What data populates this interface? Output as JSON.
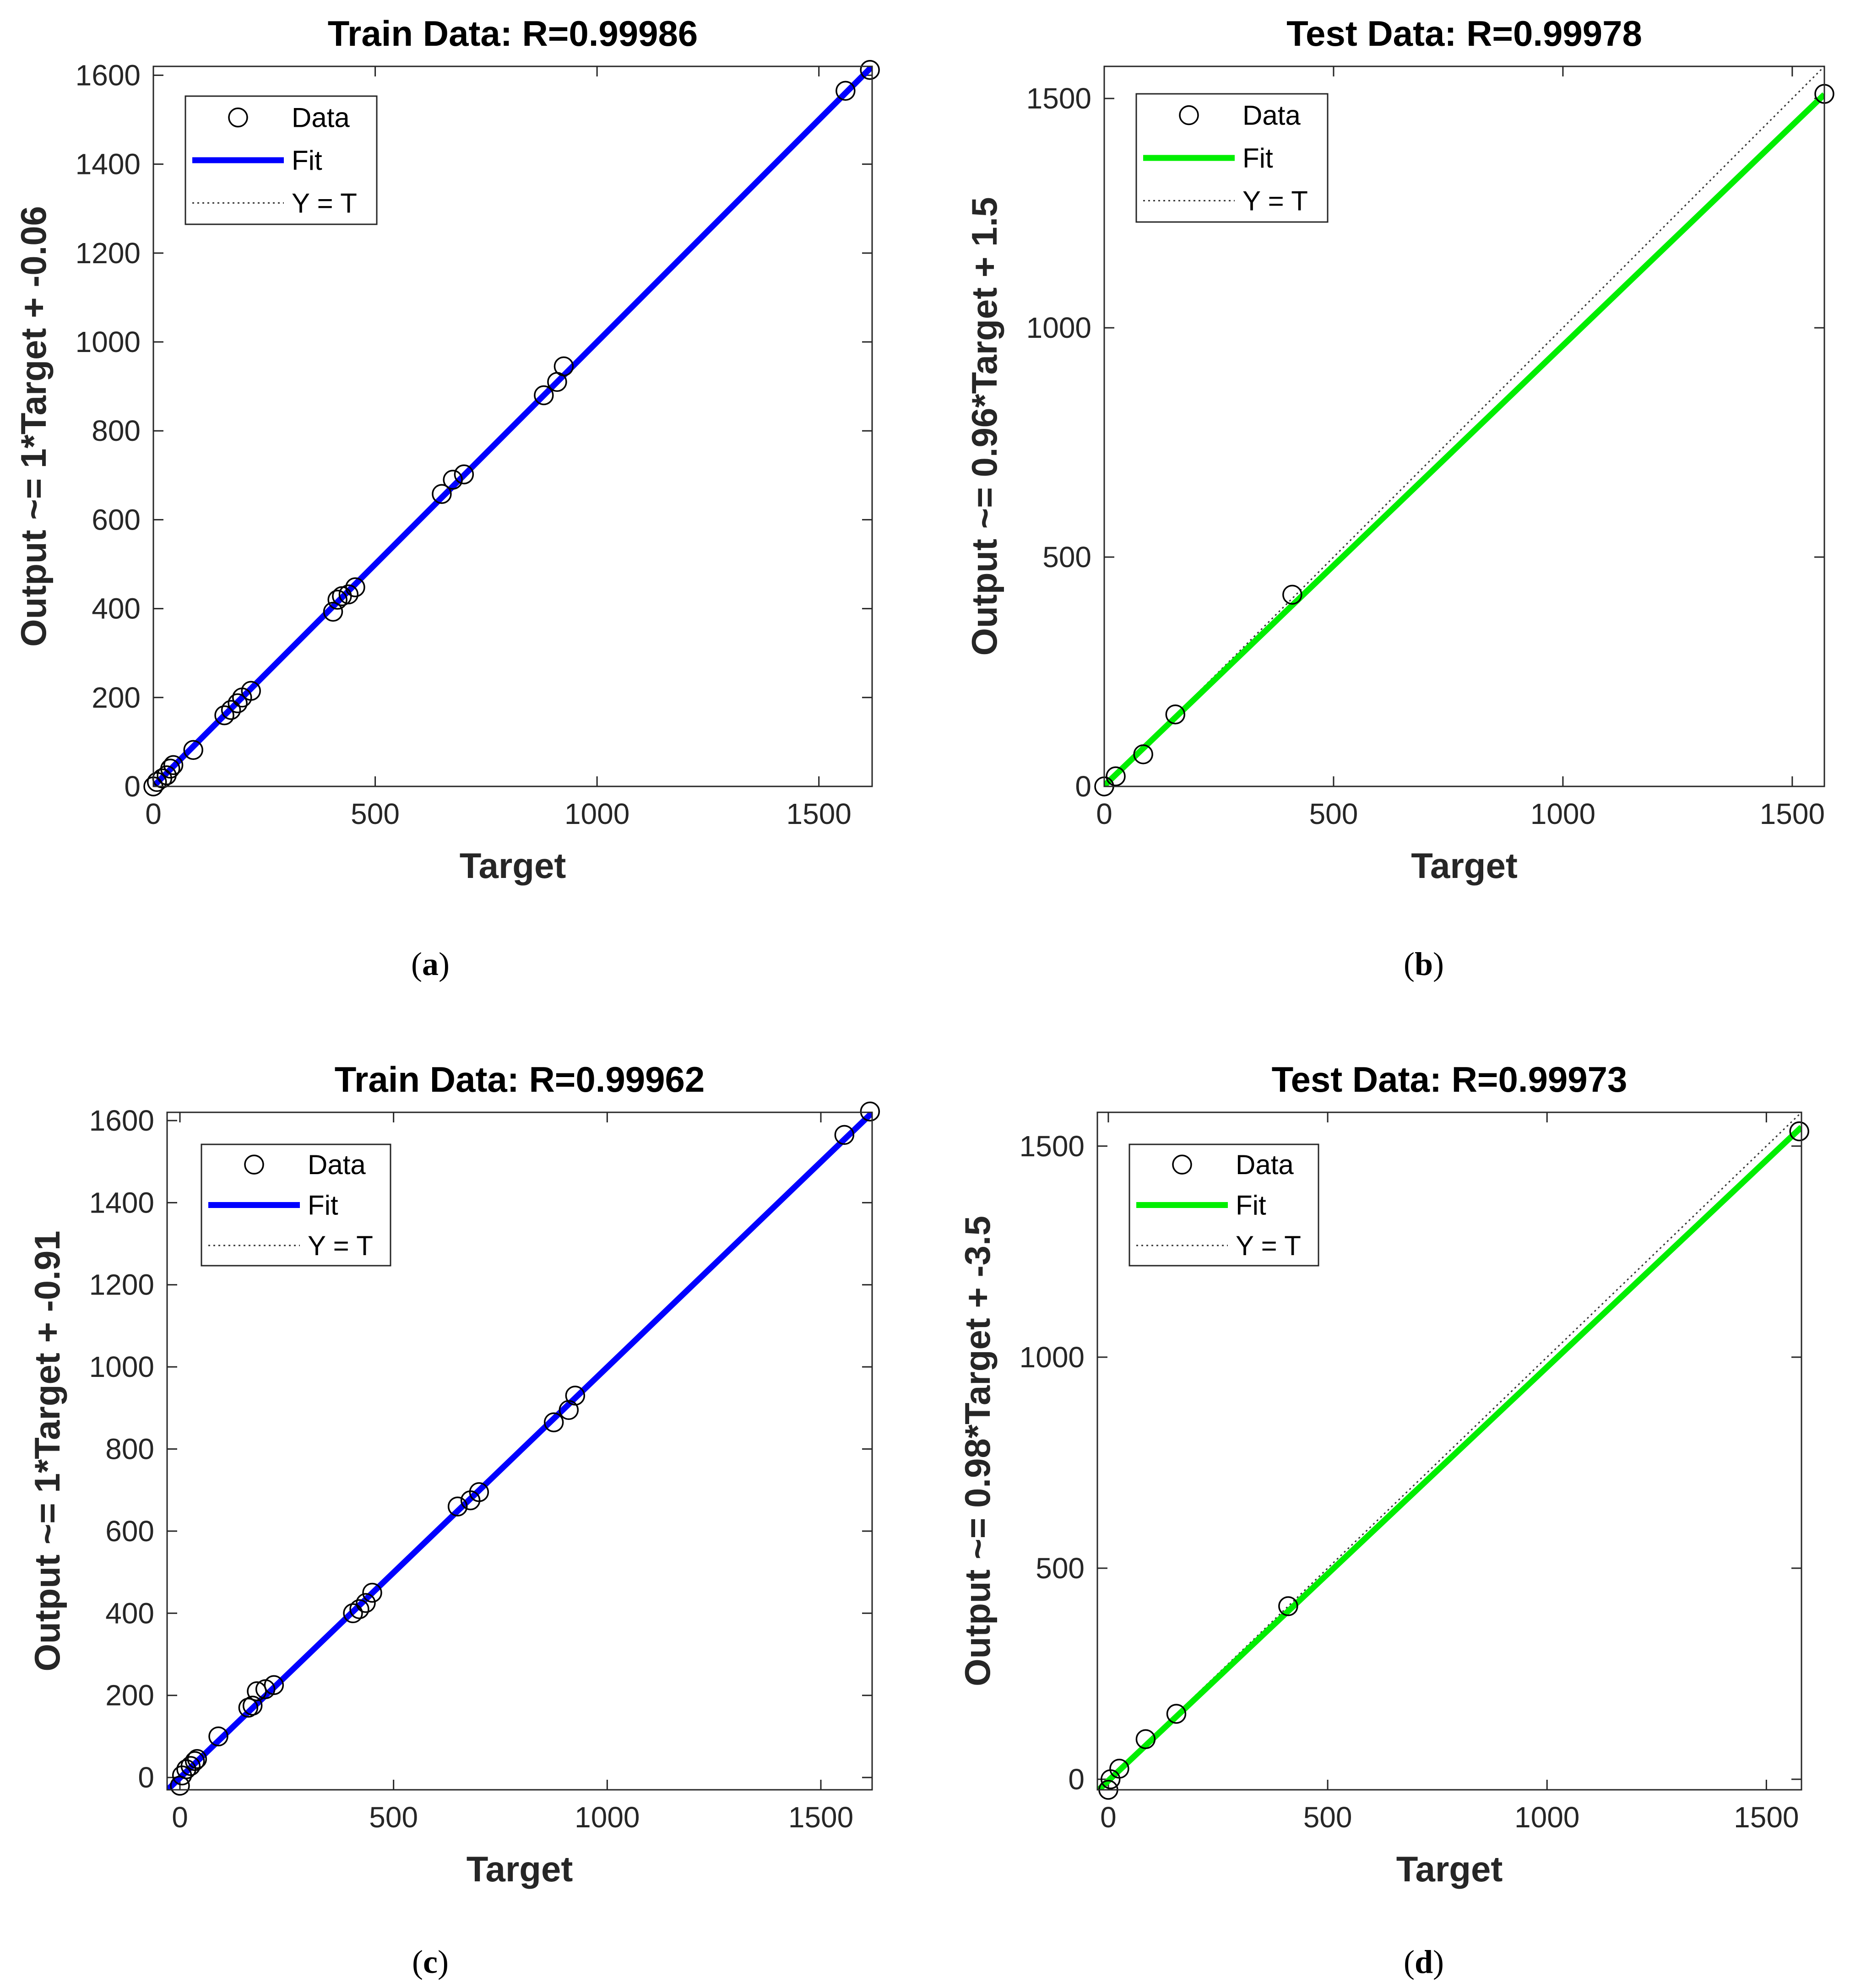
{
  "chart_data": [
    {
      "type": "scatter",
      "panel": "a",
      "panel_label": "(a)",
      "title": "Train Data: R=0.99986",
      "xlabel": "Target",
      "ylabel": "Output ~= 1*Target + -0.06",
      "xlim": [
        0,
        1620
      ],
      "ylim": [
        0,
        1620
      ],
      "xticks": [
        0,
        500,
        1000,
        1500
      ],
      "yticks": [
        0,
        200,
        400,
        600,
        800,
        1000,
        1200,
        1400,
        1600
      ],
      "fit": {
        "slope": 1,
        "intercept": -0.06,
        "color": "#0000ff"
      },
      "legend": {
        "items": [
          "Data",
          "Fit",
          "Y = T"
        ],
        "location": "top-left"
      },
      "points": {
        "x": [
          0,
          8,
          20,
          30,
          38,
          45,
          90,
          160,
          175,
          190,
          200,
          220,
          405,
          415,
          425,
          440,
          455,
          650,
          675,
          700,
          880,
          910,
          925,
          1560,
          1615
        ],
        "y": [
          0,
          10,
          18,
          25,
          40,
          48,
          82,
          160,
          172,
          187,
          200,
          215,
          393,
          420,
          428,
          432,
          448,
          658,
          690,
          702,
          880,
          910,
          945,
          1565,
          1612
        ]
      }
    },
    {
      "type": "scatter",
      "panel": "b",
      "panel_label": "(b)",
      "title": "Test Data: R=0.99978",
      "xlabel": "Target",
      "ylabel": "Output ~= 0.96*Target + 1.5",
      "xlim": [
        0,
        1570
      ],
      "ylim": [
        0,
        1570
      ],
      "xticks": [
        0,
        500,
        1000,
        1500
      ],
      "yticks": [
        0,
        500,
        1000,
        1500
      ],
      "fit": {
        "slope": 0.96,
        "intercept": 1.5,
        "color": "#00ee00"
      },
      "legend": {
        "items": [
          "Data",
          "Fit",
          "Y = T"
        ],
        "location": "top-left"
      },
      "points": {
        "x": [
          0,
          25,
          85,
          155,
          410,
          1570
        ],
        "y": [
          0,
          22,
          70,
          157,
          418,
          1510
        ]
      }
    },
    {
      "type": "scatter",
      "panel": "c",
      "panel_label": "(c)",
      "title": "Train Data: R=0.99962",
      "xlabel": "Target",
      "ylabel": "Output ~= 1*Target + -0.91",
      "xlim": [
        -30,
        1620
      ],
      "ylim": [
        -30,
        1620
      ],
      "xticks": [
        0,
        500,
        1000,
        1500
      ],
      "yticks": [
        0,
        200,
        400,
        600,
        800,
        1000,
        1200,
        1400,
        1600
      ],
      "fit": {
        "slope": 1,
        "intercept": -0.91,
        "color": "#0000ff"
      },
      "legend": {
        "items": [
          "Data",
          "Fit",
          "Y = T"
        ],
        "location": "top-left"
      },
      "points": {
        "x": [
          0,
          5,
          15,
          25,
          35,
          40,
          90,
          160,
          170,
          180,
          200,
          220,
          405,
          420,
          435,
          450,
          650,
          680,
          700,
          875,
          910,
          925,
          1555,
          1615
        ],
        "y": [
          -20,
          5,
          20,
          28,
          40,
          45,
          100,
          170,
          175,
          210,
          215,
          225,
          400,
          410,
          425,
          450,
          660,
          675,
          695,
          865,
          895,
          930,
          1565,
          1622
        ]
      }
    },
    {
      "type": "scatter",
      "panel": "d",
      "panel_label": "(d)",
      "title": "Test Data: R=0.99973",
      "xlabel": "Target",
      "ylabel": "Output ~= 0.98*Target + -3.5",
      "xlim": [
        -25,
        1580
      ],
      "ylim": [
        -25,
        1580
      ],
      "xticks": [
        0,
        500,
        1000,
        1500
      ],
      "yticks": [
        0,
        500,
        1000,
        1500
      ],
      "fit": {
        "slope": 0.98,
        "intercept": -3.5,
        "color": "#00ee00"
      },
      "legend": {
        "items": [
          "Data",
          "Fit",
          "Y = T"
        ],
        "location": "top-left"
      },
      "points": {
        "x": [
          0,
          5,
          25,
          85,
          155,
          410,
          1575
        ],
        "y": [
          -25,
          0,
          25,
          95,
          155,
          410,
          1535
        ]
      }
    }
  ]
}
